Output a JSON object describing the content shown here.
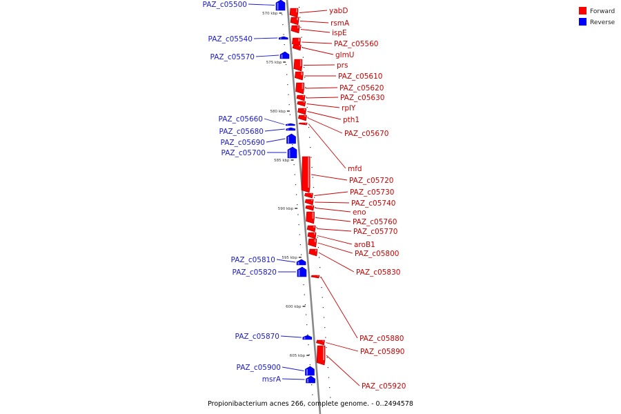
{
  "legend": [
    {
      "label": "Forward",
      "color": "#ff0000"
    },
    {
      "label": "Reverse",
      "color": "#0000ff"
    }
  ],
  "caption": "Propionibacterium acnes 266, complete genome. - 0..2494578",
  "scale_labels": [
    "570 kbp",
    "575 kbp",
    "580 kbp",
    "585 kbp",
    "590 kbp",
    "595 kbp",
    "600 kbp",
    "605 kbp"
  ],
  "genes": {
    "forward": [
      "yabD",
      "rsmA",
      "ispE",
      "PAZ_c05560",
      "glmU",
      "prs",
      "PAZ_c05610",
      "PAZ_c05620",
      "PAZ_c05630",
      "rplY",
      "pth1",
      "PAZ_c05670",
      "mfd",
      "PAZ_c05720",
      "PAZ_c05730",
      "PAZ_c05740",
      "eno",
      "PAZ_c05760",
      "PAZ_c05770",
      "aroB1",
      "PAZ_c05800",
      "PAZ_c05830",
      "PAZ_c05880",
      "PAZ_c05890",
      "PAZ_c05920"
    ],
    "reverse": [
      "PAZ_c05500",
      "PAZ_c05540",
      "PAZ_c05570",
      "PAZ_c05660",
      "PAZ_c05680",
      "PAZ_c05690",
      "PAZ_c05700",
      "PAZ_c05810",
      "PAZ_c05820",
      "PAZ_c05870",
      "PAZ_c05900",
      "msrA"
    ]
  },
  "colors": {
    "forward": "#ff0000",
    "reverse": "#0000ff",
    "backbone": "#888888"
  }
}
